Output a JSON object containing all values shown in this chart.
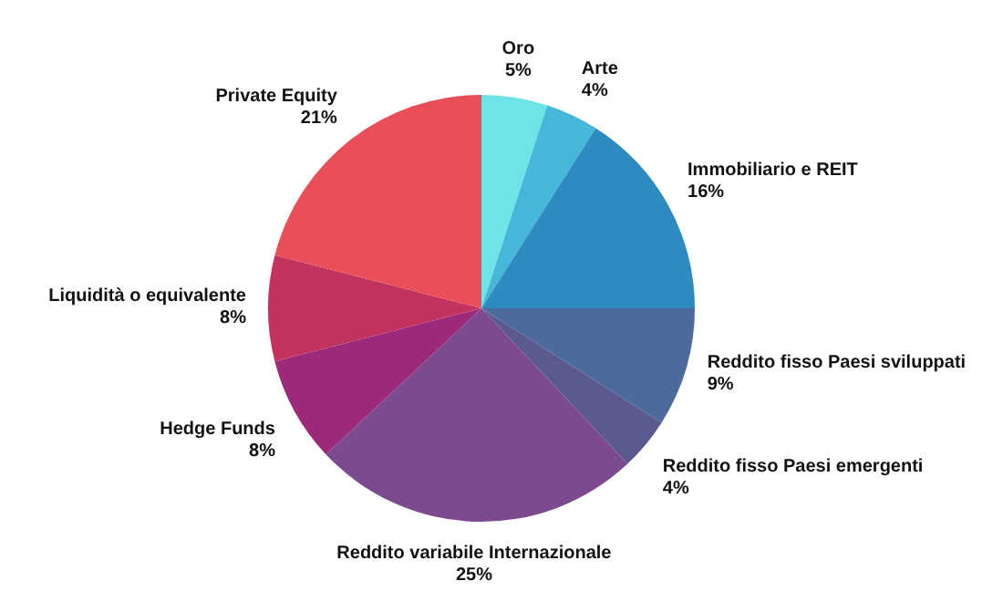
{
  "chart_data": {
    "type": "pie",
    "categories": [
      "Oro",
      "Arte",
      "Immobiliario e REIT",
      "Reddito fisso Paesi sviluppati",
      "Reddito fisso Paesi emergenti",
      "Reddito variabile Internazionale",
      "Hedge Funds",
      "Liquidità o equivalente",
      "Private Equity"
    ],
    "values": [
      5,
      4,
      16,
      9,
      4,
      25,
      8,
      8,
      21
    ],
    "value_labels": [
      "5%",
      "4%",
      "16%",
      "9%",
      "4%",
      "25%",
      "8%",
      "8%",
      "21%"
    ],
    "colors": [
      "#6ee3e8",
      "#45b7d9",
      "#2e8bbf",
      "#4c6b9c",
      "#5b5a8f",
      "#7e4a8f",
      "#9c2a7a",
      "#c2335f",
      "#e94f58"
    ]
  }
}
